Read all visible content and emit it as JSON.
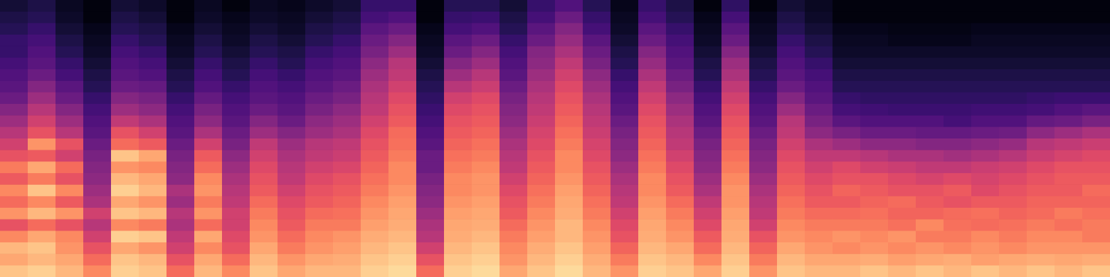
{
  "chart_data": {
    "type": "heatmap",
    "tick_labels": false,
    "zlim": [
      -80,
      0
    ],
    "values": [
      [
        -10,
        -15,
        -12,
        -20,
        -30,
        -18,
        -25,
        -20,
        -28,
        -22,
        -30,
        -35,
        -40,
        -45,
        -50,
        -55,
        -58,
        -60,
        -62,
        -65,
        -65,
        -68,
        -70,
        -72
      ],
      [
        -8,
        -12,
        -10,
        -15,
        -25,
        -12,
        -20,
        -10,
        -22,
        -15,
        -28,
        -18,
        -30,
        -35,
        -40,
        -45,
        -50,
        -55,
        -58,
        -60,
        -62,
        -65,
        -68,
        -70
      ],
      [
        -12,
        -15,
        -18,
        -20,
        -30,
        -18,
        -28,
        -20,
        -30,
        -25,
        -35,
        -30,
        -40,
        -45,
        -50,
        -55,
        -58,
        -62,
        -65,
        -68,
        -70,
        -72,
        -74,
        -75
      ],
      [
        -20,
        -25,
        -30,
        -35,
        -40,
        -35,
        -42,
        -45,
        -48,
        -50,
        -52,
        -55,
        -58,
        -60,
        -62,
        -65,
        -68,
        -70,
        -72,
        -74,
        -75,
        -76,
        -78,
        -78
      ],
      [
        -8,
        -10,
        -15,
        -8,
        -20,
        -10,
        -15,
        -8,
        -12,
        -18,
        -10,
        -25,
        -30,
        -38,
        -45,
        -50,
        -55,
        -58,
        -60,
        -62,
        -65,
        -68,
        -70,
        -72
      ],
      [
        -10,
        -12,
        -18,
        -10,
        -22,
        -12,
        -18,
        -12,
        -15,
        -20,
        -15,
        -28,
        -35,
        -42,
        -48,
        -52,
        -56,
        -60,
        -62,
        -65,
        -68,
        -70,
        -72,
        -74
      ],
      [
        -25,
        -30,
        -35,
        -38,
        -42,
        -40,
        -45,
        -42,
        -48,
        -50,
        -52,
        -55,
        -58,
        -60,
        -62,
        -65,
        -68,
        -70,
        -72,
        -74,
        -75,
        -76,
        -78,
        -78
      ],
      [
        -12,
        -15,
        -20,
        -15,
        -25,
        -18,
        -22,
        -18,
        -20,
        -25,
        -28,
        -35,
        -42,
        -48,
        -52,
        -56,
        -60,
        -62,
        -65,
        -68,
        -70,
        -72,
        -74,
        -75
      ],
      [
        -20,
        -25,
        -30,
        -32,
        -35,
        -35,
        -38,
        -40,
        -42,
        -45,
        -48,
        -52,
        -55,
        -58,
        -60,
        -62,
        -65,
        -68,
        -70,
        -72,
        -74,
        -75,
        -76,
        -78
      ],
      [
        -10,
        -12,
        -15,
        -18,
        -20,
        -22,
        -25,
        -28,
        -30,
        -32,
        -35,
        -38,
        -45,
        -50,
        -55,
        -58,
        -60,
        -62,
        -65,
        -68,
        -70,
        -72,
        -74,
        -75
      ],
      [
        -15,
        -18,
        -22,
        -25,
        -28,
        -30,
        -32,
        -35,
        -38,
        -40,
        -42,
        -45,
        -50,
        -55,
        -58,
        -60,
        -62,
        -65,
        -68,
        -70,
        -72,
        -74,
        -75,
        -76
      ],
      [
        -12,
        -15,
        -18,
        -20,
        -22,
        -25,
        -28,
        -30,
        -32,
        -35,
        -38,
        -40,
        -45,
        -48,
        -52,
        -55,
        -58,
        -60,
        -62,
        -65,
        -68,
        -70,
        -72,
        -74
      ],
      [
        -12,
        -14,
        -16,
        -18,
        -22,
        -24,
        -26,
        -28,
        -30,
        -33,
        -36,
        -38,
        -42,
        -45,
        -48,
        -52,
        -55,
        -58,
        -60,
        -62,
        -65,
        -68,
        -70,
        -72
      ],
      [
        -8,
        -10,
        -12,
        -14,
        -16,
        -18,
        -20,
        -22,
        -24,
        -26,
        -28,
        -30,
        -32,
        -35,
        -38,
        -40,
        -42,
        -45,
        -48,
        -52,
        -55,
        -58,
        -62,
        -65
      ],
      [
        -6,
        -8,
        -10,
        -12,
        -14,
        -15,
        -16,
        -18,
        -20,
        -20,
        -22,
        -24,
        -25,
        -28,
        -30,
        -32,
        -35,
        -38,
        -40,
        -45,
        -50,
        -55,
        -60,
        -65
      ],
      [
        -25,
        -30,
        -35,
        -40,
        -42,
        -45,
        -48,
        -50,
        -52,
        -55,
        -55,
        -58,
        -60,
        -62,
        -64,
        -66,
        -68,
        -70,
        -72,
        -74,
        -75,
        -76,
        -78,
        -78
      ],
      [
        -8,
        -10,
        -12,
        -14,
        -15,
        -16,
        -18,
        -20,
        -20,
        -22,
        -24,
        -26,
        -28,
        -30,
        -32,
        -35,
        -40,
        -45,
        -50,
        -55,
        -58,
        -62,
        -65,
        -68
      ],
      [
        -6,
        -8,
        -10,
        -12,
        -14,
        -15,
        -16,
        -18,
        -18,
        -20,
        -22,
        -24,
        -26,
        -28,
        -30,
        -32,
        -36,
        -40,
        -45,
        -50,
        -55,
        -60,
        -64,
        -68
      ],
      [
        -15,
        -18,
        -20,
        -22,
        -25,
        -28,
        -30,
        -32,
        -35,
        -38,
        -40,
        -42,
        -45,
        -48,
        -50,
        -52,
        -55,
        -58,
        -60,
        -62,
        -65,
        -68,
        -70,
        -72
      ],
      [
        -10,
        -12,
        -14,
        -16,
        -18,
        -20,
        -22,
        -24,
        -26,
        -28,
        -30,
        -32,
        -34,
        -36,
        -38,
        -40,
        -42,
        -45,
        -48,
        -50,
        -55,
        -58,
        -62,
        -65
      ],
      [
        -6,
        -8,
        -10,
        -12,
        -12,
        -14,
        -15,
        -16,
        -18,
        -20,
        -20,
        -22,
        -24,
        -26,
        -28,
        -30,
        -32,
        -35,
        -38,
        -42,
        -46,
        -50,
        -55,
        -60
      ],
      [
        -12,
        -14,
        -16,
        -18,
        -20,
        -22,
        -24,
        -26,
        -28,
        -30,
        -32,
        -34,
        -36,
        -38,
        -40,
        -42,
        -45,
        -48,
        -52,
        -55,
        -58,
        -62,
        -65,
        -68
      ],
      [
        -18,
        -22,
        -26,
        -30,
        -32,
        -35,
        -38,
        -40,
        -42,
        -45,
        -48,
        -50,
        -52,
        -55,
        -58,
        -60,
        -62,
        -65,
        -68,
        -70,
        -72,
        -74,
        -75,
        -76
      ],
      [
        -8,
        -10,
        -12,
        -14,
        -15,
        -16,
        -18,
        -20,
        -20,
        -22,
        -24,
        -26,
        -28,
        -30,
        -32,
        -35,
        -38,
        -42,
        -46,
        -50,
        -55,
        -58,
        -62,
        -65
      ],
      [
        -10,
        -12,
        -15,
        -18,
        -20,
        -22,
        -25,
        -28,
        -30,
        -32,
        -35,
        -38,
        -40,
        -42,
        -45,
        -48,
        -52,
        -55,
        -58,
        -60,
        -62,
        -65,
        -68,
        -70
      ],
      [
        -15,
        -20,
        -25,
        -28,
        -32,
        -35,
        -38,
        -42,
        -45,
        -48,
        -50,
        -52,
        -55,
        -58,
        -60,
        -62,
        -65,
        -68,
        -70,
        -72,
        -74,
        -75,
        -76,
        -78
      ],
      [
        -8,
        -10,
        -12,
        -14,
        -15,
        -16,
        -18,
        -18,
        -20,
        -22,
        -24,
        -26,
        -28,
        -30,
        -32,
        -35,
        -38,
        -42,
        -45,
        -50,
        -55,
        -58,
        -62,
        -66
      ],
      [
        -18,
        -22,
        -26,
        -30,
        -35,
        -38,
        -40,
        -42,
        -45,
        -48,
        -50,
        -52,
        -55,
        -58,
        -60,
        -62,
        -65,
        -68,
        -70,
        -72,
        -74,
        -75,
        -76,
        -78
      ],
      [
        -10,
        -12,
        -15,
        -18,
        -20,
        -22,
        -24,
        -26,
        -28,
        -30,
        -32,
        -35,
        -38,
        -40,
        -45,
        -50,
        -55,
        -58,
        -60,
        -62,
        -65,
        -68,
        -70,
        -72
      ],
      [
        -12,
        -15,
        -18,
        -20,
        -22,
        -25,
        -28,
        -30,
        -32,
        -35,
        -38,
        -42,
        -48,
        -52,
        -55,
        -58,
        -60,
        -62,
        -65,
        -68,
        -70,
        -72,
        -74,
        -75
      ],
      [
        -12,
        -15,
        -20,
        -18,
        -22,
        -25,
        -28,
        -26,
        -30,
        -32,
        -38,
        -45,
        -52,
        -58,
        -62,
        -65,
        -68,
        -70,
        -72,
        -74,
        -75,
        -76,
        -78,
        -78
      ],
      [
        -10,
        -14,
        -18,
        -20,
        -22,
        -24,
        -26,
        -28,
        -30,
        -35,
        -40,
        -48,
        -55,
        -60,
        -63,
        -66,
        -68,
        -70,
        -72,
        -74,
        -75,
        -76,
        -78,
        -78
      ],
      [
        -12,
        -16,
        -20,
        -18,
        -24,
        -26,
        -25,
        -30,
        -32,
        -36,
        -42,
        -48,
        -55,
        -60,
        -64,
        -66,
        -68,
        -70,
        -72,
        -74,
        -76,
        -77,
        -78,
        -78
      ],
      [
        -10,
        -15,
        -18,
        -22,
        -20,
        -26,
        -28,
        -30,
        -34,
        -38,
        -42,
        -50,
        -56,
        -60,
        -64,
        -66,
        -68,
        -70,
        -72,
        -74,
        -76,
        -77,
        -78,
        -78
      ],
      [
        -12,
        -14,
        -20,
        -22,
        -24,
        -25,
        -30,
        -28,
        -32,
        -38,
        -44,
        -50,
        -56,
        -62,
        -64,
        -66,
        -68,
        -70,
        -72,
        -74,
        -76,
        -77,
        -78,
        -78
      ],
      [
        -10,
        -16,
        -18,
        -20,
        -25,
        -24,
        -28,
        -32,
        -34,
        -36,
        -42,
        -48,
        -55,
        -60,
        -63,
        -66,
        -68,
        -70,
        -72,
        -74,
        -75,
        -76,
        -78,
        -78
      ],
      [
        -12,
        -15,
        -20,
        -22,
        -24,
        -26,
        -28,
        -30,
        -32,
        -35,
        -40,
        -46,
        -54,
        -60,
        -63,
        -66,
        -68,
        -70,
        -72,
        -74,
        -75,
        -76,
        -78,
        -78
      ],
      [
        -10,
        -14,
        -18,
        -20,
        -22,
        -25,
        -26,
        -28,
        -30,
        -32,
        -36,
        -40,
        -48,
        -56,
        -62,
        -65,
        -68,
        -70,
        -72,
        -74,
        -75,
        -76,
        -78,
        -78
      ],
      [
        -12,
        -15,
        -18,
        -20,
        -24,
        -22,
        -26,
        -28,
        -28,
        -30,
        -34,
        -38,
        -45,
        -55,
        -60,
        -64,
        -68,
        -70,
        -72,
        -74,
        -75,
        -76,
        -78,
        -78
      ],
      [
        -10,
        -14,
        -18,
        -22,
        -22,
        -24,
        -26,
        -25,
        -28,
        -30,
        -32,
        -36,
        -42,
        -52,
        -58,
        -64,
        -68,
        -70,
        -72,
        -74,
        -75,
        -76,
        -78,
        -78
      ]
    ]
  }
}
